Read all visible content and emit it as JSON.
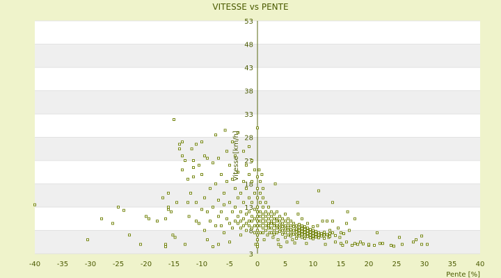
{
  "chart_data": {
    "type": "scatter",
    "title": "VITESSE vs PENTE",
    "xlabel": "Pente [%]",
    "ylabel": "Vitesse [km/h]",
    "xlim": [
      -40,
      40
    ],
    "ylim": [
      3,
      53
    ],
    "xticks": [
      -40,
      -35,
      -30,
      -25,
      -20,
      -15,
      -10,
      -5,
      0,
      5,
      10,
      15,
      20,
      25,
      30,
      35,
      40
    ],
    "yticks": [
      3,
      8,
      13,
      18,
      23,
      28,
      33,
      38,
      43,
      48,
      53
    ],
    "grid": "horizontal alternating bands",
    "legend": "none",
    "colors": {
      "background": "#eff3cb",
      "plot": "#ffffff",
      "band": "#efefef",
      "point": "#6b7d00",
      "text": "#4a5a00"
    },
    "points": [
      [
        -40,
        13.5
      ],
      [
        -30.5,
        6
      ],
      [
        -28,
        10.5
      ],
      [
        -26,
        9.5
      ],
      [
        -25,
        13
      ],
      [
        -24,
        12.3
      ],
      [
        -23,
        7
      ],
      [
        -21,
        5
      ],
      [
        -20,
        11
      ],
      [
        -19.5,
        10.5
      ],
      [
        -18,
        10
      ],
      [
        -17,
        15
      ],
      [
        -16.5,
        10.5
      ],
      [
        -16,
        12.5
      ],
      [
        -16,
        13
      ],
      [
        -16,
        16
      ],
      [
        -16.5,
        5
      ],
      [
        -16.5,
        4.5
      ],
      [
        -15.5,
        12
      ],
      [
        -15.2,
        7
      ],
      [
        -15,
        31.8
      ],
      [
        -14.8,
        6.5
      ],
      [
        -14.5,
        14
      ],
      [
        -14,
        26.5
      ],
      [
        -14,
        25.5
      ],
      [
        -13.5,
        27
      ],
      [
        -13.5,
        24
      ],
      [
        -13.5,
        21
      ],
      [
        -13,
        23
      ],
      [
        -13,
        5
      ],
      [
        -12.5,
        14
      ],
      [
        -12.5,
        19
      ],
      [
        -12.3,
        11
      ],
      [
        -12,
        16
      ],
      [
        -11.8,
        25.5
      ],
      [
        -11.5,
        23
      ],
      [
        -11.5,
        21.5
      ],
      [
        -11.5,
        19.5
      ],
      [
        -11,
        26.5
      ],
      [
        -11,
        14
      ],
      [
        -11,
        10
      ],
      [
        -10.5,
        22
      ],
      [
        -10.5,
        9.5
      ],
      [
        -10,
        12.5
      ],
      [
        -10,
        27
      ],
      [
        -10,
        20
      ],
      [
        -9.5,
        24
      ],
      [
        -9.5,
        15
      ],
      [
        -9.5,
        8
      ],
      [
        -9,
        23.5
      ],
      [
        -9,
        12
      ],
      [
        -9,
        6
      ],
      [
        -8.5,
        17
      ],
      [
        -8.5,
        10
      ],
      [
        -8,
        22.5
      ],
      [
        -8,
        13
      ],
      [
        -8,
        4.5
      ],
      [
        -7.5,
        28.5
      ],
      [
        -7.5,
        18
      ],
      [
        -7.5,
        9
      ],
      [
        -7,
        23.5
      ],
      [
        -7,
        14.5
      ],
      [
        -7,
        11
      ],
      [
        -7,
        5
      ],
      [
        -6.5,
        20
      ],
      [
        -6.5,
        12
      ],
      [
        -6.5,
        9
      ],
      [
        -6,
        16
      ],
      [
        -6,
        13.5
      ],
      [
        -6,
        7.5
      ],
      [
        -5.8,
        29.5
      ],
      [
        -5.5,
        25
      ],
      [
        -5.5,
        18.5
      ],
      [
        -5.5,
        10.5
      ],
      [
        -5,
        22
      ],
      [
        -5,
        14
      ],
      [
        -5,
        9.5
      ],
      [
        -5,
        5.5
      ],
      [
        -4.5,
        27
      ],
      [
        -4.5,
        19
      ],
      [
        -4.5,
        12
      ],
      [
        -4.5,
        8.5
      ],
      [
        -4,
        24
      ],
      [
        -4,
        17
      ],
      [
        -4,
        13
      ],
      [
        -4,
        10
      ],
      [
        -3.5,
        29
      ],
      [
        -3.5,
        20.5
      ],
      [
        -3.5,
        15
      ],
      [
        -3.5,
        11
      ],
      [
        -3.5,
        9.5
      ],
      [
        -3,
        16
      ],
      [
        -3,
        12
      ],
      [
        -3,
        10
      ],
      [
        -3,
        8.5
      ],
      [
        -3,
        7
      ],
      [
        -2.5,
        25
      ],
      [
        -2.5,
        18.5
      ],
      [
        -2.5,
        14
      ],
      [
        -2.5,
        10.5
      ],
      [
        -2.5,
        9
      ],
      [
        -2,
        22
      ],
      [
        -2,
        17
      ],
      [
        -2,
        11.5
      ],
      [
        -2,
        9.5
      ],
      [
        -2,
        8
      ],
      [
        -1.5,
        26
      ],
      [
        -1.5,
        20
      ],
      [
        -1.5,
        15
      ],
      [
        -1.5,
        12
      ],
      [
        -1.5,
        10
      ],
      [
        -1.5,
        9
      ],
      [
        -1,
        23
      ],
      [
        -1,
        18.5
      ],
      [
        -1,
        14
      ],
      [
        -1,
        11
      ],
      [
        -1,
        10
      ],
      [
        -1,
        8.5
      ],
      [
        -0.5,
        21
      ],
      [
        -0.5,
        16
      ],
      [
        -0.5,
        12.5
      ],
      [
        -0.5,
        10.5
      ],
      [
        -0.5,
        9
      ],
      [
        -0.5,
        7.5
      ],
      [
        -0.3,
        5
      ],
      [
        0,
        30
      ],
      [
        0,
        19.5
      ],
      [
        0,
        17
      ],
      [
        0,
        15
      ],
      [
        0,
        13
      ],
      [
        0,
        12
      ],
      [
        0,
        11
      ],
      [
        0,
        10
      ],
      [
        0,
        9
      ],
      [
        0,
        8
      ],
      [
        0,
        7
      ],
      [
        0,
        6
      ],
      [
        0,
        5
      ],
      [
        0,
        4.5
      ],
      [
        0.3,
        21
      ],
      [
        0.5,
        18.5
      ],
      [
        0.5,
        16
      ],
      [
        0.5,
        14
      ],
      [
        0.5,
        12
      ],
      [
        0.5,
        11
      ],
      [
        0.5,
        10
      ],
      [
        0.5,
        9
      ],
      [
        0.5,
        7.5
      ],
      [
        0.8,
        20
      ],
      [
        1,
        17
      ],
      [
        1,
        15
      ],
      [
        1,
        13
      ],
      [
        1,
        11.5
      ],
      [
        1,
        10.5
      ],
      [
        1,
        9.5
      ],
      [
        1,
        8.5
      ],
      [
        1,
        7.5
      ],
      [
        1.2,
        6
      ],
      [
        1.5,
        14
      ],
      [
        1.5,
        12
      ],
      [
        1.5,
        11
      ],
      [
        1.5,
        10
      ],
      [
        1.5,
        9
      ],
      [
        1.5,
        8
      ],
      [
        1.8,
        7
      ],
      [
        2,
        13
      ],
      [
        2,
        11.5
      ],
      [
        2,
        10.5
      ],
      [
        2,
        9.5
      ],
      [
        2,
        9
      ],
      [
        2,
        8.5
      ],
      [
        2.2,
        7.5
      ],
      [
        2.5,
        12
      ],
      [
        2.5,
        11
      ],
      [
        2.5,
        10
      ],
      [
        2.5,
        9.5
      ],
      [
        2.5,
        8.5
      ],
      [
        2.5,
        7.5
      ],
      [
        2.8,
        6.5
      ],
      [
        3,
        11.5
      ],
      [
        3,
        10.5
      ],
      [
        3,
        9.5
      ],
      [
        3,
        9
      ],
      [
        3,
        8
      ],
      [
        3,
        7.2
      ],
      [
        3.2,
        18
      ],
      [
        3.5,
        12
      ],
      [
        3.5,
        10.5
      ],
      [
        3.5,
        10
      ],
      [
        3.5,
        9
      ],
      [
        3.5,
        8.5
      ],
      [
        3.5,
        7.5
      ],
      [
        3.7,
        6
      ],
      [
        3.8,
        5
      ],
      [
        4,
        11
      ],
      [
        4,
        10
      ],
      [
        4,
        9.2
      ],
      [
        4,
        8.5
      ],
      [
        4,
        7.8
      ],
      [
        4.2,
        4.5
      ],
      [
        4.5,
        10.5
      ],
      [
        4.5,
        9.5
      ],
      [
        4.5,
        8.8
      ],
      [
        4.5,
        8
      ],
      [
        4.5,
        7.2
      ],
      [
        5,
        11.5
      ],
      [
        5,
        10
      ],
      [
        5,
        9
      ],
      [
        5,
        8.3
      ],
      [
        5,
        7.5
      ],
      [
        5,
        6.5
      ],
      [
        5.3,
        5.5
      ],
      [
        5.5,
        10.5
      ],
      [
        5.5,
        9.5
      ],
      [
        5.5,
        8.7
      ],
      [
        5.5,
        8
      ],
      [
        5.5,
        7
      ],
      [
        6,
        10
      ],
      [
        6,
        9
      ],
      [
        6,
        8.2
      ],
      [
        6,
        7.5
      ],
      [
        6,
        6.8
      ],
      [
        6.3,
        6
      ],
      [
        6.5,
        9.5
      ],
      [
        6.5,
        8.8
      ],
      [
        6.5,
        8
      ],
      [
        6.5,
        7.2
      ],
      [
        6.7,
        5.3
      ],
      [
        7,
        9
      ],
      [
        7,
        8.3
      ],
      [
        7,
        7.7
      ],
      [
        7,
        7
      ],
      [
        7,
        6.3
      ],
      [
        7.2,
        14
      ],
      [
        7.3,
        11.5
      ],
      [
        7.5,
        9.3
      ],
      [
        7.5,
        8.6
      ],
      [
        7.5,
        8
      ],
      [
        7.5,
        7.4
      ],
      [
        7.5,
        6.8
      ],
      [
        8,
        10.5
      ],
      [
        8,
        9
      ],
      [
        8,
        8.4
      ],
      [
        8,
        7.8
      ],
      [
        8,
        7.2
      ],
      [
        8,
        6.5
      ],
      [
        8.5,
        8.8
      ],
      [
        8.5,
        8.2
      ],
      [
        8.5,
        7.6
      ],
      [
        8.5,
        7
      ],
      [
        8.5,
        6.3
      ],
      [
        8.8,
        5.2
      ],
      [
        9,
        9.5
      ],
      [
        9,
        8.5
      ],
      [
        9,
        7.9
      ],
      [
        9,
        7.3
      ],
      [
        9,
        6.7
      ],
      [
        9.5,
        8.2
      ],
      [
        9.5,
        7.6
      ],
      [
        9.5,
        7
      ],
      [
        9.5,
        6.4
      ],
      [
        10,
        8.8
      ],
      [
        10,
        8
      ],
      [
        10,
        7.4
      ],
      [
        10,
        6.8
      ],
      [
        10,
        6.2
      ],
      [
        10.5,
        7.8
      ],
      [
        10.5,
        7.2
      ],
      [
        10.5,
        6.6
      ],
      [
        10.8,
        9
      ],
      [
        11,
        7.5
      ],
      [
        11,
        7
      ],
      [
        11,
        6.4
      ],
      [
        11,
        16.5
      ],
      [
        11.5,
        7.3
      ],
      [
        11.5,
        6.8
      ],
      [
        11.7,
        10
      ],
      [
        12,
        7.6
      ],
      [
        12,
        7
      ],
      [
        12,
        6.3
      ],
      [
        12.2,
        5
      ],
      [
        12.5,
        10
      ],
      [
        12.5,
        7.1
      ],
      [
        12.8,
        6.5
      ],
      [
        13,
        8
      ],
      [
        13,
        7.3
      ],
      [
        13,
        6.7
      ],
      [
        13.5,
        14
      ],
      [
        13.5,
        10
      ],
      [
        13.5,
        7.5
      ],
      [
        14,
        6.9
      ],
      [
        14,
        5.5
      ],
      [
        14.5,
        8.5
      ],
      [
        14.8,
        6.5
      ],
      [
        15,
        7.5
      ],
      [
        15,
        5.2
      ],
      [
        15.3,
        4.8
      ],
      [
        15.5,
        7.3
      ],
      [
        16,
        5.5
      ],
      [
        16,
        9.5
      ],
      [
        16.2,
        12
      ],
      [
        16.5,
        8
      ],
      [
        17,
        4.8
      ],
      [
        17.5,
        5.2
      ],
      [
        17.5,
        10.5
      ],
      [
        18,
        5
      ],
      [
        18.5,
        5.5
      ],
      [
        19,
        5.1
      ],
      [
        20,
        4.8
      ],
      [
        20,
        5
      ],
      [
        21,
        4.8
      ],
      [
        21.5,
        7.5
      ],
      [
        22,
        5.2
      ],
      [
        22.5,
        5.2
      ],
      [
        24,
        4.8
      ],
      [
        24.5,
        4.6
      ],
      [
        25.5,
        6.5
      ],
      [
        26,
        5
      ],
      [
        28,
        5.5
      ],
      [
        28.5,
        6
      ],
      [
        29.5,
        5
      ],
      [
        29.5,
        6.8
      ],
      [
        30.5,
        5
      ]
    ]
  }
}
